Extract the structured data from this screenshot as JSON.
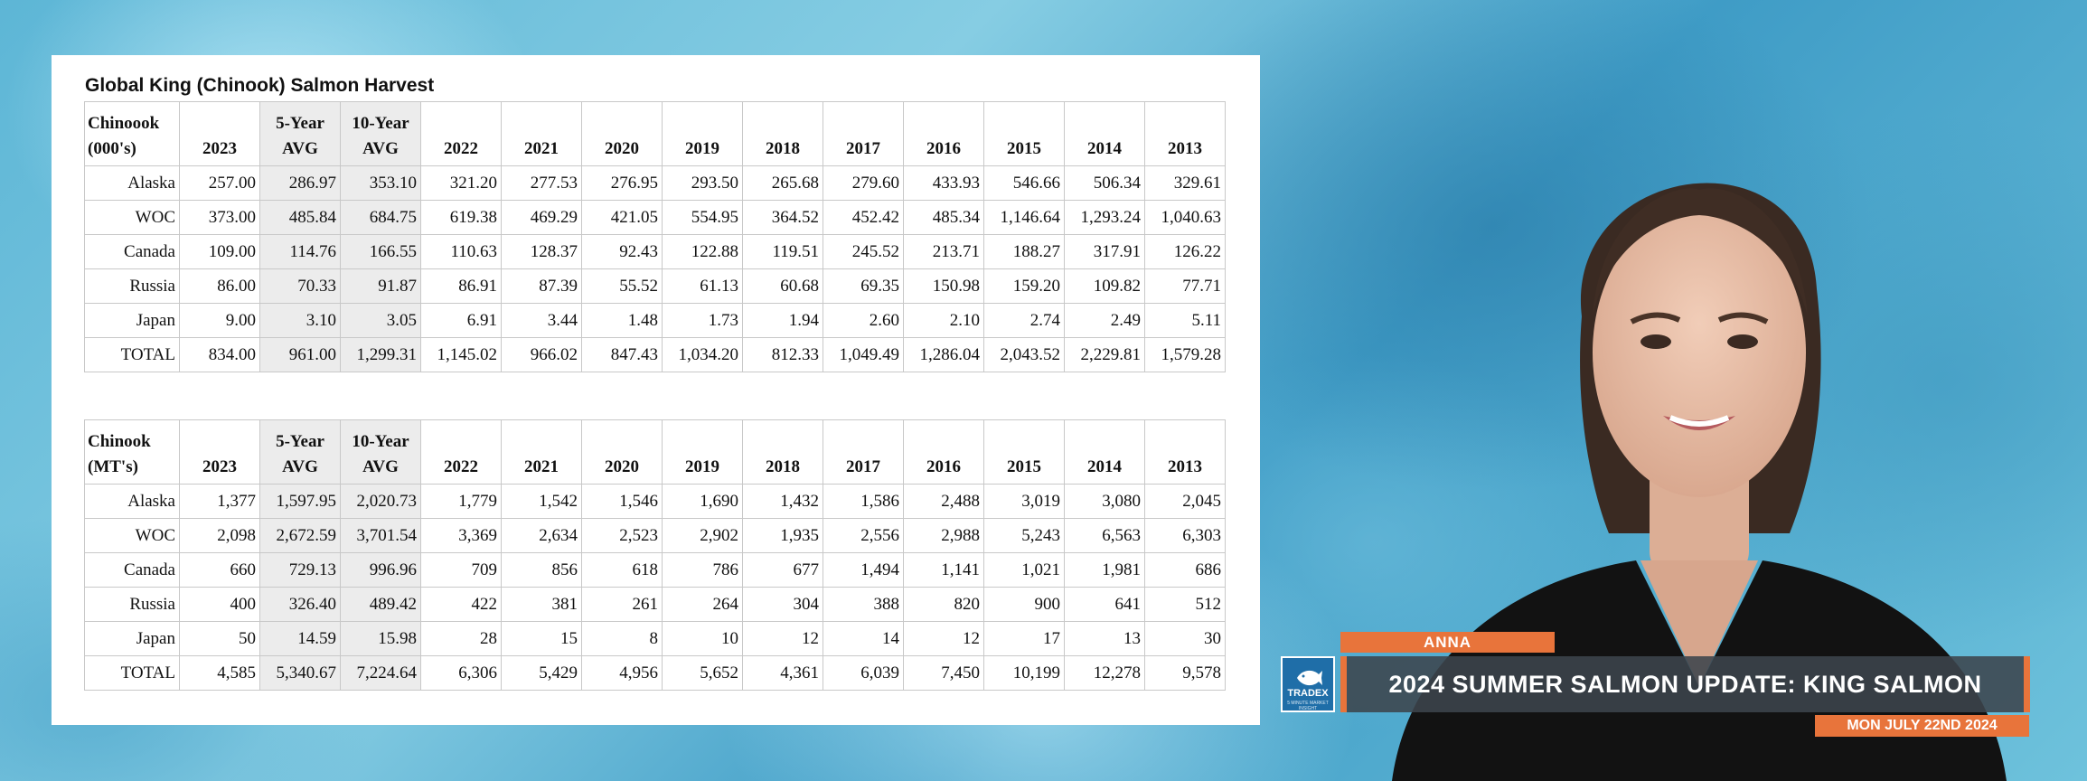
{
  "panel": {
    "title": "Global King (Chinook) Salmon Harvest"
  },
  "table1": {
    "header_first": [
      "Chinoook",
      "(000's)"
    ],
    "columns": [
      {
        "label": [
          "2023"
        ]
      },
      {
        "label": [
          "5-Year",
          "AVG"
        ]
      },
      {
        "label": [
          "10-Year",
          "AVG"
        ]
      },
      {
        "label": [
          "2022"
        ]
      },
      {
        "label": [
          "2021"
        ]
      },
      {
        "label": [
          "2020"
        ]
      },
      {
        "label": [
          "2019"
        ]
      },
      {
        "label": [
          "2018"
        ]
      },
      {
        "label": [
          "2017"
        ]
      },
      {
        "label": [
          "2016"
        ]
      },
      {
        "label": [
          "2015"
        ]
      },
      {
        "label": [
          "2014"
        ]
      },
      {
        "label": [
          "2013"
        ]
      }
    ],
    "rows": [
      {
        "label": "Alaska",
        "values": [
          "257.00",
          "286.97",
          "353.10",
          "321.20",
          "277.53",
          "276.95",
          "293.50",
          "265.68",
          "279.60",
          "433.93",
          "546.66",
          "506.34",
          "329.61"
        ]
      },
      {
        "label": "WOC",
        "values": [
          "373.00",
          "485.84",
          "684.75",
          "619.38",
          "469.29",
          "421.05",
          "554.95",
          "364.52",
          "452.42",
          "485.34",
          "1,146.64",
          "1,293.24",
          "1,040.63"
        ]
      },
      {
        "label": "Canada",
        "values": [
          "109.00",
          "114.76",
          "166.55",
          "110.63",
          "128.37",
          "92.43",
          "122.88",
          "119.51",
          "245.52",
          "213.71",
          "188.27",
          "317.91",
          "126.22"
        ]
      },
      {
        "label": "Russia",
        "values": [
          "86.00",
          "70.33",
          "91.87",
          "86.91",
          "87.39",
          "55.52",
          "61.13",
          "60.68",
          "69.35",
          "150.98",
          "159.20",
          "109.82",
          "77.71"
        ]
      },
      {
        "label": "Japan",
        "values": [
          "9.00",
          "3.10",
          "3.05",
          "6.91",
          "3.44",
          "1.48",
          "1.73",
          "1.94",
          "2.60",
          "2.10",
          "2.74",
          "2.49",
          "5.11"
        ]
      },
      {
        "label": "TOTAL",
        "values": [
          "834.00",
          "961.00",
          "1,299.31",
          "1,145.02",
          "966.02",
          "847.43",
          "1,034.20",
          "812.33",
          "1,049.49",
          "1,286.04",
          "2,043.52",
          "2,229.81",
          "1,579.28"
        ]
      }
    ]
  },
  "table2": {
    "header_first": [
      "Chinook",
      "(MT's)"
    ],
    "columns": [
      {
        "label": [
          "2023"
        ]
      },
      {
        "label": [
          "5-Year",
          "AVG"
        ]
      },
      {
        "label": [
          "10-Year",
          "AVG"
        ]
      },
      {
        "label": [
          "2022"
        ]
      },
      {
        "label": [
          "2021"
        ]
      },
      {
        "label": [
          "2020"
        ]
      },
      {
        "label": [
          "2019"
        ]
      },
      {
        "label": [
          "2018"
        ]
      },
      {
        "label": [
          "2017"
        ]
      },
      {
        "label": [
          "2016"
        ]
      },
      {
        "label": [
          "2015"
        ]
      },
      {
        "label": [
          "2014"
        ]
      },
      {
        "label": [
          "2013"
        ]
      }
    ],
    "rows": [
      {
        "label": "Alaska",
        "values": [
          "1,377",
          "1,597.95",
          "2,020.73",
          "1,779",
          "1,542",
          "1,546",
          "1,690",
          "1,432",
          "1,586",
          "2,488",
          "3,019",
          "3,080",
          "2,045"
        ]
      },
      {
        "label": "WOC",
        "values": [
          "2,098",
          "2,672.59",
          "3,701.54",
          "3,369",
          "2,634",
          "2,523",
          "2,902",
          "1,935",
          "2,556",
          "2,988",
          "5,243",
          "6,563",
          "6,303"
        ]
      },
      {
        "label": "Canada",
        "values": [
          "660",
          "729.13",
          "996.96",
          "709",
          "856",
          "618",
          "786",
          "677",
          "1,494",
          "1,141",
          "1,021",
          "1,981",
          "686"
        ]
      },
      {
        "label": "Russia",
        "values": [
          "400",
          "326.40",
          "489.42",
          "422",
          "381",
          "261",
          "264",
          "304",
          "388",
          "820",
          "900",
          "641",
          "512"
        ]
      },
      {
        "label": "Japan",
        "values": [
          "50",
          "14.59",
          "15.98",
          "28",
          "15",
          "8",
          "10",
          "12",
          "14",
          "12",
          "17",
          "13",
          "30"
        ]
      },
      {
        "label": "TOTAL",
        "values": [
          "4,585",
          "5,340.67",
          "7,224.64",
          "6,306",
          "5,429",
          "4,956",
          "5,652",
          "4,361",
          "6,039",
          "7,450",
          "10,199",
          "12,278",
          "9,578"
        ]
      }
    ]
  },
  "lower_third": {
    "presenter_name": "ANNA",
    "headline": "2024 SUMMER SALMON UPDATE: KING SALMON",
    "date": "MON JULY 22ND 2024",
    "logo_text": "TRADEX",
    "logo_subtext": "5 MINUTE MARKET INSIGHT",
    "accent_color": "#e8743b",
    "bar_color": "#3c444c"
  },
  "icons": {
    "logo": "tradex-fish-logo-icon"
  }
}
